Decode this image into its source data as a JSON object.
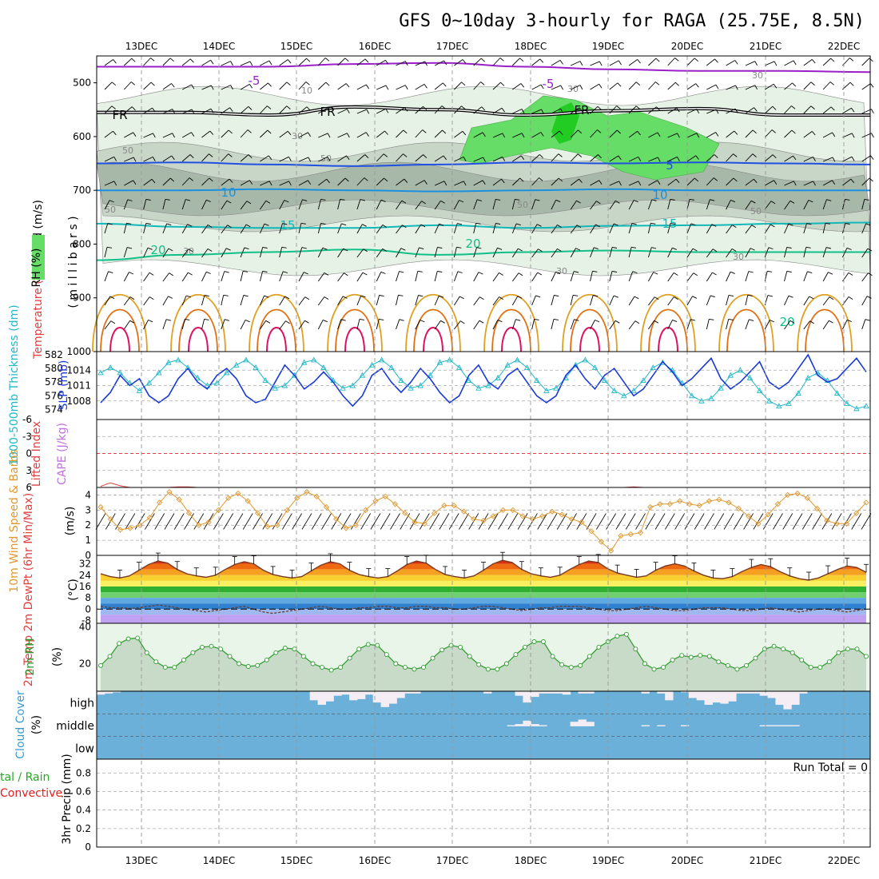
{
  "title": "GFS 0~10day 3-hourly for RAGA (25.75E, 8.5N)",
  "dates": [
    "13DEC",
    "14DEC",
    "15DEC",
    "16DEC",
    "17DEC",
    "18DEC",
    "19DEC",
    "20DEC",
    "21DEC",
    "22DEC"
  ],
  "run_total": "Run Total = 0",
  "colors": {
    "temp_m5": "#9a1fc8",
    "temp_0": "#000000",
    "temp_5": "#2050e0",
    "temp_10": "#1a90e0",
    "temp_15": "#10b8b8",
    "temp_20": "#10c088",
    "temp_25": "#e0a020",
    "temp_30": "#e07010",
    "temp_35": "#e01060",
    "rh_light": "#e6f2e6",
    "rh_mid": "#c8d6c8",
    "rh_dark": "#a8b8a8",
    "rh_green": "#66dd66",
    "rh_bright": "#22cc22",
    "thickness": "#1a3ad8",
    "slp": "#20b8c8",
    "wind10": "#e09830",
    "rh2m": "#2a9a2a",
    "cloud": "#6ab0d8",
    "cape": "#e04040"
  },
  "chart_data": [
    {
      "type": "contour",
      "panel": "upper-air",
      "ylabel_parts": [
        "RH (%)",
        "Temperature (°C)",
        "Wind (m/s)"
      ],
      "yunit": "( m i l l i b a r s )",
      "yticks": [
        "500",
        "600",
        "700",
        "800",
        "900",
        "1000"
      ],
      "ylim": [
        450,
        1000
      ],
      "contour_labels": {
        "m5": "-5",
        "fr": "FR",
        "p5": "5",
        "p10": "10",
        "p15": "15",
        "p20": "20",
        "rh30": "30",
        "rh50": "50",
        "rh10": "10"
      },
      "isotherms": [
        {
          "name": "-5",
          "values": [
            470,
            470,
            470,
            465,
            463,
            470,
            475,
            478,
            478,
            480
          ]
        },
        {
          "name": "FR",
          "values": [
            555,
            555,
            560,
            545,
            550,
            560,
            552,
            548,
            560,
            560
          ]
        },
        {
          "name": "5",
          "values": [
            650,
            648,
            652,
            655,
            652,
            648,
            650,
            648,
            650,
            652
          ]
        },
        {
          "name": "10",
          "values": [
            700,
            700,
            698,
            700,
            702,
            700,
            698,
            700,
            700,
            700
          ]
        },
        {
          "name": "15",
          "values": [
            762,
            768,
            770,
            770,
            765,
            770,
            766,
            765,
            762,
            760
          ]
        },
        {
          "name": "20",
          "values": [
            830,
            820,
            815,
            810,
            820,
            815,
            812,
            815,
            815,
            815
          ]
        }
      ]
    },
    {
      "type": "line",
      "panel": "thickness-slp",
      "ylabel": "1000-500mb Thickness (dm)",
      "ylabel2": "SLP (mb)",
      "yticks_left": [
        "574",
        "576",
        "578",
        "580",
        "582"
      ],
      "yticks_right": [
        "1008",
        "1011",
        "1014"
      ],
      "ylim": [
        573,
        582
      ],
      "ylim_right": [
        1005,
        1017
      ],
      "series": [
        {
          "name": "Thickness",
          "values": [
            575,
            576.5,
            579,
            577.5,
            578.5,
            576,
            575,
            576,
            578.5,
            580,
            578,
            577,
            579,
            580,
            578.5,
            576,
            575,
            575.5,
            578,
            580.5,
            579,
            577,
            578,
            579.5,
            578,
            576,
            574.5,
            576,
            579,
            580,
            578,
            576.5,
            578,
            580,
            578.5,
            576.5,
            575,
            576,
            579,
            580.5,
            578,
            577,
            579,
            580,
            578,
            576,
            575,
            576,
            579,
            580.5,
            578.5,
            577,
            579,
            580,
            578,
            576,
            577,
            579,
            581,
            579.5,
            577.5,
            578.5,
            580,
            581.5,
            578.5,
            577,
            578,
            579.5,
            581,
            578,
            577,
            578,
            580,
            582,
            579,
            578,
            578.5,
            580,
            581.5,
            579.5
          ]
        },
        {
          "name": "SLP",
          "values": [
            1013.5,
            1014.5,
            1013.5,
            1011.5,
            1010,
            1011.5,
            1013.5,
            1015.5,
            1016,
            1014.5,
            1012.5,
            1011,
            1011.5,
            1013.5,
            1015,
            1016,
            1014.5,
            1012,
            1010.5,
            1011,
            1013,
            1015.5,
            1016,
            1014.5,
            1012,
            1010.5,
            1011,
            1013,
            1015,
            1016,
            1014.5,
            1012,
            1010.5,
            1011,
            1013,
            1015.5,
            1016,
            1014.5,
            1012,
            1010.5,
            1011,
            1012.5,
            1015,
            1016,
            1014.5,
            1012,
            1010,
            1010.5,
            1012.5,
            1015,
            1016,
            1014.5,
            1012,
            1010,
            1009,
            1010,
            1012,
            1014.5,
            1015.5,
            1014,
            1011.5,
            1009,
            1008,
            1008.5,
            1010.5,
            1013,
            1014,
            1012.5,
            1010,
            1008,
            1007,
            1007.5,
            1009.5,
            1012.5,
            1013.5,
            1012,
            1009.5,
            1007.5,
            1006.5,
            1007
          ]
        }
      ]
    },
    {
      "type": "line",
      "panel": "cape-li",
      "ylabel": "Lifted Index",
      "ylabel2": "CAPE (J/kg)",
      "yticks": [
        "-6",
        "-3",
        "0",
        "3",
        "6"
      ],
      "ylim": [
        -6,
        6
      ],
      "series": [
        {
          "name": "Lifted Index",
          "values": [
            5.8,
            5.2,
            5.7,
            6,
            6,
            6,
            6,
            6,
            5.9,
            5.9,
            6,
            6,
            6,
            6,
            6,
            6,
            6,
            6,
            6,
            6,
            6,
            6,
            6,
            6,
            6,
            6,
            6,
            6,
            6,
            6,
            6,
            6,
            6,
            6,
            6,
            6,
            6,
            6,
            6,
            6,
            6,
            6,
            6,
            6,
            6,
            6,
            6,
            6,
            6,
            6,
            6,
            6,
            6,
            6,
            6,
            5.9,
            6,
            6,
            6,
            6,
            6,
            6,
            6,
            6,
            6,
            6,
            6,
            6,
            6,
            6,
            6,
            6,
            6,
            6,
            6,
            6,
            6,
            6,
            6,
            6
          ]
        }
      ]
    },
    {
      "type": "line",
      "panel": "wind10m",
      "ylabel": "10m Wind Speed & Barbs",
      "yunit": "(m/s)",
      "yticks": [
        "0",
        "1",
        "2",
        "3",
        "4"
      ],
      "ylim": [
        0,
        4.5
      ],
      "series": [
        {
          "name": "10m Wind Speed",
          "values": [
            3.2,
            2.4,
            1.7,
            1.8,
            2,
            2.5,
            3.5,
            4.2,
            3.7,
            2.8,
            2,
            2.2,
            3,
            3.8,
            4.1,
            3.6,
            2.8,
            1.9,
            2,
            3,
            3.8,
            4.2,
            3.9,
            3.2,
            2.4,
            1.8,
            2,
            3,
            3.6,
            3.9,
            3.4,
            2.8,
            2.2,
            2.1,
            2.8,
            3.3,
            3.3,
            2.9,
            2.4,
            2.3,
            2.6,
            3,
            3,
            2.6,
            2.4,
            2.6,
            2.9,
            2.7,
            2.4,
            2.2,
            1.6,
            0.9,
            0.3,
            1.3,
            1.4,
            1.5,
            3.2,
            3.4,
            3.4,
            3.6,
            3.4,
            3.3,
            3.6,
            3.7,
            3.5,
            3.1,
            2.6,
            2.1,
            2.7,
            3.4,
            4,
            4.1,
            3.8,
            3.1,
            2.3,
            2.1,
            2.1,
            2.8,
            3.5
          ]
        }
      ]
    },
    {
      "type": "area",
      "panel": "temp2m",
      "ylabel": "2m Temp 2m DewPt (6hr Min/Max)",
      "yunit": "(°C)",
      "yticks": [
        "-8",
        "0",
        "8",
        "16",
        "24",
        "32"
      ],
      "ylim": [
        -10,
        38
      ],
      "series": [
        {
          "name": "2m Temp",
          "values": [
            25,
            23,
            22,
            23.5,
            27.5,
            31.5,
            34,
            32.5,
            28,
            25,
            23.5,
            22.5,
            24,
            28,
            31.5,
            33.5,
            32,
            27.5,
            24.5,
            23,
            22,
            23,
            27,
            31,
            33.5,
            32,
            27.5,
            24.5,
            23,
            22,
            23,
            27,
            31.5,
            34,
            32.5,
            28,
            24.5,
            23,
            22,
            23.5,
            27.5,
            32,
            34.5,
            33,
            28,
            25,
            23.5,
            22.5,
            24,
            28,
            31.5,
            34,
            33,
            28.5,
            25.5,
            24,
            22.5,
            23.5,
            27.5,
            30.5,
            32,
            30.5,
            27,
            24,
            22,
            21.5,
            23,
            26.5,
            29.5,
            31.5,
            30,
            26.5,
            23.5,
            21.5,
            20.5,
            22,
            25,
            28,
            30.5,
            29.5,
            26
          ]
        },
        {
          "name": "2m DewPt",
          "values": [
            2,
            1,
            1,
            0.5,
            1,
            2,
            3,
            2,
            1,
            0,
            -1,
            -2,
            -1,
            0,
            1,
            2,
            0,
            -2,
            -3,
            -2,
            -1,
            0,
            1,
            2,
            1,
            0,
            0,
            1,
            1,
            2,
            2,
            1,
            1,
            2,
            2,
            1,
            1,
            0,
            0,
            1,
            2,
            2,
            1,
            0,
            -1,
            0,
            1,
            1,
            2,
            2,
            2,
            1,
            0,
            -1,
            -1,
            0,
            1,
            2,
            1,
            0,
            -1,
            -1,
            0,
            1,
            1,
            1,
            0,
            -1,
            -1,
            0,
            1,
            0,
            -1,
            -2,
            -1,
            0,
            0,
            -1,
            -2,
            -1,
            0
          ]
        }
      ]
    },
    {
      "type": "area",
      "panel": "rh2m",
      "ylabel": "2m RH",
      "yunit": "(%)",
      "yticks": [
        "20",
        "40"
      ],
      "ylim": [
        5,
        42
      ],
      "series": [
        {
          "name": "2m RH",
          "values": [
            19,
            24,
            31,
            33.5,
            34,
            26,
            21,
            18,
            18,
            22,
            26,
            29,
            29.5,
            28,
            24,
            20,
            18.5,
            19,
            22,
            26,
            28.5,
            28,
            24,
            20,
            18,
            16.5,
            18,
            23,
            28,
            30.5,
            30,
            25,
            20,
            18,
            17,
            18,
            23,
            27.5,
            30,
            29,
            24,
            19.5,
            17,
            17,
            20,
            25,
            29,
            32,
            32,
            24,
            19.5,
            18,
            19,
            24,
            29,
            32,
            35,
            36,
            28,
            20,
            17,
            18,
            22,
            24.5,
            23.5,
            24.5,
            24,
            21,
            19,
            17,
            19,
            23,
            28,
            29.5,
            28,
            26,
            22,
            18,
            18,
            21,
            26,
            28,
            28,
            24
          ]
        }
      ]
    },
    {
      "type": "bar",
      "panel": "cloud",
      "ylabel": "Cloud Cover",
      "yunit": "(%)",
      "levels": [
        "high",
        "middle",
        "low"
      ],
      "series": [
        {
          "name": "high",
          "values": [
            15,
            10,
            5,
            0,
            0,
            0,
            0,
            0,
            0,
            0,
            0,
            0,
            0,
            0,
            0,
            0,
            0,
            0,
            0,
            0,
            0,
            0,
            0,
            0,
            0,
            0,
            0,
            40,
            60,
            45,
            20,
            15,
            40,
            35,
            15,
            50,
            70,
            55,
            30,
            10,
            10,
            0,
            0,
            0,
            0,
            0,
            0,
            0,
            0,
            10,
            0,
            0,
            0,
            20,
            50,
            25,
            10,
            10,
            10,
            15,
            0,
            10,
            10,
            0,
            0,
            0,
            0,
            0,
            0,
            10,
            0,
            10,
            40,
            0,
            5,
            30,
            40,
            60,
            50,
            55,
            45,
            10,
            10,
            10,
            20,
            30,
            60,
            80,
            60,
            10,
            0,
            0,
            0,
            0,
            0,
            0,
            0,
            0
          ]
        },
        {
          "name": "middle",
          "values": [
            0,
            0,
            0,
            0,
            0,
            0,
            0,
            0,
            0,
            0,
            0,
            0,
            0,
            0,
            0,
            0,
            0,
            0,
            0,
            0,
            0,
            0,
            0,
            0,
            0,
            0,
            0,
            0,
            0,
            0,
            0,
            0,
            0,
            0,
            0,
            0,
            0,
            0,
            0,
            0,
            0,
            0,
            0,
            0,
            0,
            0,
            0,
            0,
            0,
            0,
            0,
            0,
            5,
            10,
            25,
            10,
            5,
            0,
            0,
            0,
            20,
            30,
            20,
            0,
            0,
            0,
            0,
            0,
            0,
            5,
            0,
            5,
            0,
            0,
            5,
            0,
            0,
            0,
            0,
            0,
            0,
            0,
            0,
            0,
            5,
            5,
            5,
            5,
            5,
            0,
            0,
            0,
            0,
            0,
            0,
            0,
            0,
            0
          ]
        },
        {
          "name": "low",
          "values": [
            0,
            0,
            0,
            0,
            0,
            0,
            0,
            0,
            0,
            0,
            0,
            0,
            0,
            0,
            0,
            0,
            0,
            0,
            0,
            0,
            0,
            0,
            0,
            0,
            0,
            0,
            0,
            0,
            0,
            0,
            0,
            0,
            0,
            0,
            0,
            0,
            0,
            0,
            0,
            0,
            0,
            0,
            0,
            0,
            0,
            0,
            0,
            0,
            0,
            0,
            0,
            0,
            0,
            0,
            0,
            0,
            0,
            0,
            0,
            0,
            0,
            0,
            0,
            0,
            0,
            0,
            0,
            0,
            0,
            0,
            0,
            0,
            0,
            0,
            0,
            0,
            0,
            0,
            0,
            0,
            0,
            0,
            0,
            0,
            0,
            0,
            0,
            0,
            0,
            0,
            0,
            0,
            0,
            0,
            0,
            0,
            0,
            0
          ]
        }
      ]
    },
    {
      "type": "bar",
      "panel": "precip",
      "ylabel_left_parts": [
        "tal / Rain",
        "Convective"
      ],
      "ylabel": "3hr Precip (mm)",
      "yticks": [
        "0",
        "0.2",
        "0.4",
        "0.6",
        "0.8"
      ],
      "ylim": [
        0,
        0.95
      ],
      "series": [
        {
          "name": "Total",
          "values": []
        }
      ]
    }
  ]
}
